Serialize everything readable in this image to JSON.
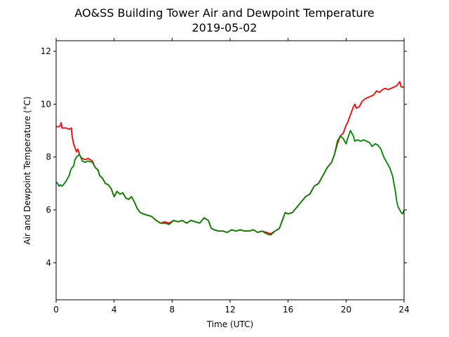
{
  "chart_data": {
    "type": "line",
    "title": "AO&SS Building Tower Air and Dewpoint Temperature",
    "subtitle": "2019-05-02",
    "xlabel": "Time (UTC)",
    "ylabel": "Air and Dewpoint Temperature (°C)",
    "xlim": [
      0,
      24
    ],
    "ylim": [
      2.6,
      12.4
    ],
    "xticks": [
      0,
      4,
      8,
      12,
      16,
      20,
      24
    ],
    "yticks": [
      4,
      6,
      8,
      10,
      12
    ],
    "grid": false,
    "legend": "none",
    "series": [
      {
        "color": "#ff0000",
        "x": [
          0.0,
          0.2,
          0.3,
          0.35,
          0.4,
          0.5,
          0.7,
          0.9,
          1.05,
          1.1,
          1.2,
          1.3,
          1.4,
          1.5,
          1.6,
          1.7,
          1.8,
          2.0,
          2.2,
          2.5,
          2.7,
          2.9,
          3.0,
          3.2,
          3.4,
          3.6,
          3.8,
          4.0,
          4.2,
          4.4,
          4.6,
          4.8,
          5.0,
          5.2,
          5.4,
          5.6,
          5.8,
          6.0,
          6.3,
          6.6,
          6.9,
          7.2,
          7.5,
          7.8,
          8.1,
          8.4,
          8.7,
          9.0,
          9.3,
          9.6,
          9.9,
          10.2,
          10.5,
          10.7,
          10.9,
          11.2,
          11.5,
          11.8,
          12.1,
          12.4,
          12.7,
          13.0,
          13.3,
          13.6,
          13.9,
          14.2,
          14.5,
          14.8,
          15.1,
          15.4,
          15.6,
          15.8,
          16.0,
          16.3,
          16.6,
          16.9,
          17.2,
          17.5,
          17.8,
          18.1,
          18.4,
          18.7,
          19.0,
          19.2,
          19.4,
          19.6,
          19.8,
          20.0,
          20.1,
          20.3,
          20.5,
          20.6,
          20.7,
          20.9,
          21.1,
          21.3,
          21.5,
          21.7,
          21.9,
          22.1,
          22.3,
          22.5,
          22.7,
          22.9,
          23.1,
          23.3,
          23.5,
          23.7,
          23.8,
          24.0
        ],
        "y": [
          9.15,
          9.15,
          9.2,
          9.3,
          9.1,
          9.1,
          9.1,
          9.05,
          9.1,
          8.8,
          8.5,
          8.35,
          8.2,
          8.3,
          8.1,
          8.0,
          7.95,
          7.9,
          7.95,
          7.85,
          7.6,
          7.5,
          7.3,
          7.2,
          7.0,
          6.95,
          6.8,
          6.5,
          6.7,
          6.6,
          6.65,
          6.45,
          6.4,
          6.5,
          6.3,
          6.05,
          5.9,
          5.85,
          5.8,
          5.75,
          5.6,
          5.5,
          5.55,
          5.5,
          5.6,
          5.55,
          5.6,
          5.5,
          5.6,
          5.55,
          5.5,
          5.7,
          5.6,
          5.3,
          5.25,
          5.2,
          5.2,
          5.15,
          5.25,
          5.2,
          5.25,
          5.2,
          5.2,
          5.25,
          5.15,
          5.2,
          5.15,
          5.1,
          5.2,
          5.3,
          5.6,
          5.9,
          5.85,
          5.9,
          6.1,
          6.3,
          6.5,
          6.6,
          6.9,
          7.0,
          7.3,
          7.6,
          7.8,
          8.1,
          8.5,
          8.8,
          8.9,
          9.2,
          9.3,
          9.6,
          9.9,
          10.0,
          9.85,
          9.9,
          10.1,
          10.2,
          10.25,
          10.3,
          10.35,
          10.5,
          10.45,
          10.55,
          10.6,
          10.55,
          10.6,
          10.65,
          10.7,
          10.85,
          10.65,
          10.65
        ]
      },
      {
        "color": "#008000",
        "x": [
          0.0,
          0.1,
          0.2,
          0.3,
          0.4,
          0.5,
          0.7,
          0.9,
          1.0,
          1.1,
          1.2,
          1.3,
          1.4,
          1.5,
          1.6,
          1.7,
          1.8,
          2.0,
          2.2,
          2.5,
          2.7,
          2.9,
          3.0,
          3.2,
          3.4,
          3.6,
          3.8,
          4.0,
          4.2,
          4.4,
          4.6,
          4.8,
          5.0,
          5.2,
          5.4,
          5.6,
          5.8,
          6.0,
          6.3,
          6.6,
          6.9,
          7.2,
          7.5,
          7.8,
          8.1,
          8.4,
          8.7,
          9.0,
          9.3,
          9.6,
          9.9,
          10.2,
          10.5,
          10.7,
          10.9,
          11.2,
          11.5,
          11.8,
          12.1,
          12.4,
          12.7,
          13.0,
          13.3,
          13.6,
          13.9,
          14.2,
          14.5,
          14.8,
          15.1,
          15.4,
          15.6,
          15.8,
          16.0,
          16.3,
          16.6,
          16.9,
          17.2,
          17.5,
          17.8,
          18.1,
          18.4,
          18.7,
          19.0,
          19.2,
          19.4,
          19.6,
          19.8,
          20.0,
          20.1,
          20.3,
          20.5,
          20.6,
          20.8,
          21.0,
          21.2,
          21.4,
          21.6,
          21.8,
          22.0,
          22.2,
          22.4,
          22.6,
          22.8,
          23.0,
          23.2,
          23.3,
          23.4,
          23.5,
          23.6,
          23.7,
          23.8,
          23.9,
          24.0
        ],
        "y": [
          7.05,
          7.0,
          6.9,
          6.95,
          6.9,
          6.95,
          7.1,
          7.3,
          7.5,
          7.6,
          7.65,
          7.9,
          8.0,
          8.05,
          8.1,
          8.0,
          7.85,
          7.8,
          7.85,
          7.8,
          7.6,
          7.5,
          7.3,
          7.2,
          7.0,
          6.95,
          6.8,
          6.5,
          6.7,
          6.6,
          6.65,
          6.45,
          6.4,
          6.5,
          6.3,
          6.05,
          5.9,
          5.85,
          5.8,
          5.75,
          5.6,
          5.5,
          5.5,
          5.45,
          5.6,
          5.55,
          5.6,
          5.5,
          5.6,
          5.55,
          5.5,
          5.7,
          5.6,
          5.3,
          5.25,
          5.2,
          5.2,
          5.15,
          5.25,
          5.2,
          5.25,
          5.2,
          5.2,
          5.25,
          5.15,
          5.2,
          5.1,
          5.05,
          5.2,
          5.3,
          5.6,
          5.9,
          5.85,
          5.9,
          6.1,
          6.3,
          6.5,
          6.6,
          6.9,
          7.0,
          7.3,
          7.6,
          7.8,
          8.1,
          8.6,
          8.8,
          8.7,
          8.5,
          8.7,
          9.0,
          8.8,
          8.6,
          8.65,
          8.6,
          8.65,
          8.6,
          8.55,
          8.4,
          8.5,
          8.45,
          8.3,
          8.0,
          7.8,
          7.6,
          7.3,
          7.0,
          6.7,
          6.3,
          6.1,
          6.0,
          5.9,
          5.85,
          6.0
        ]
      }
    ]
  }
}
